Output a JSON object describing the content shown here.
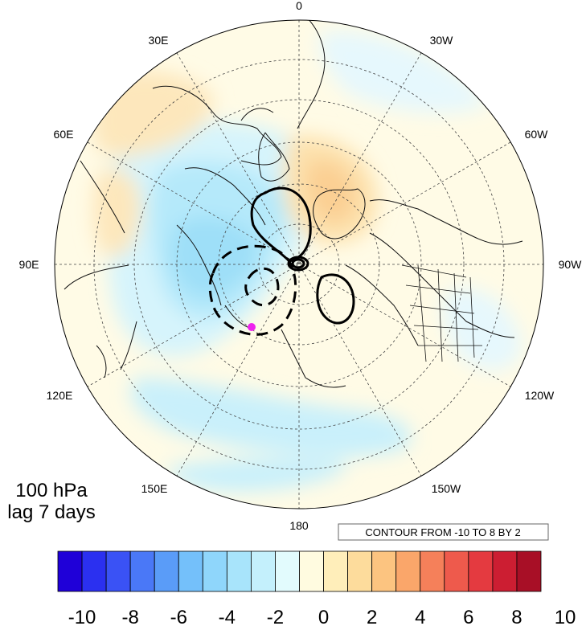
{
  "map": {
    "projection": "north-polar-stereographic",
    "longitude_labels": {
      "top": "0",
      "top_left": "30E",
      "top_right": "30W",
      "upper_left": "60E",
      "upper_right": "60W",
      "left": "90E",
      "right": "90W",
      "lower_left": "120E",
      "lower_right": "120W",
      "bottom_left": "150E",
      "bottom_right": "150W",
      "bottom": "180"
    },
    "panel_text": {
      "level": "100 hPa",
      "lag": "lag 7 days"
    },
    "contour_info": "CONTOUR FROM -10 TO 8 BY 2",
    "contour_styles": {
      "positive": "solid black",
      "negative": "dashed black"
    },
    "marker_color": "#ee22ee"
  },
  "colorbar": {
    "labels": [
      "-10",
      "-8",
      "-6",
      "-4",
      "-2",
      "0",
      "2",
      "4",
      "6",
      "8",
      "10"
    ],
    "colors": [
      "#1f00d8",
      "#2b30f0",
      "#3a52f5",
      "#4a78f7",
      "#5a9cf8",
      "#74c0fa",
      "#8fd6fb",
      "#a8e4fb",
      "#c4f0fc",
      "#e2fbfd",
      "#fffbe0",
      "#ffeeba",
      "#fddc9c",
      "#fcc480",
      "#faa66a",
      "#f5805a",
      "#ee5a4c",
      "#e43a40",
      "#cc1e32",
      "#a80f26"
    ]
  }
}
